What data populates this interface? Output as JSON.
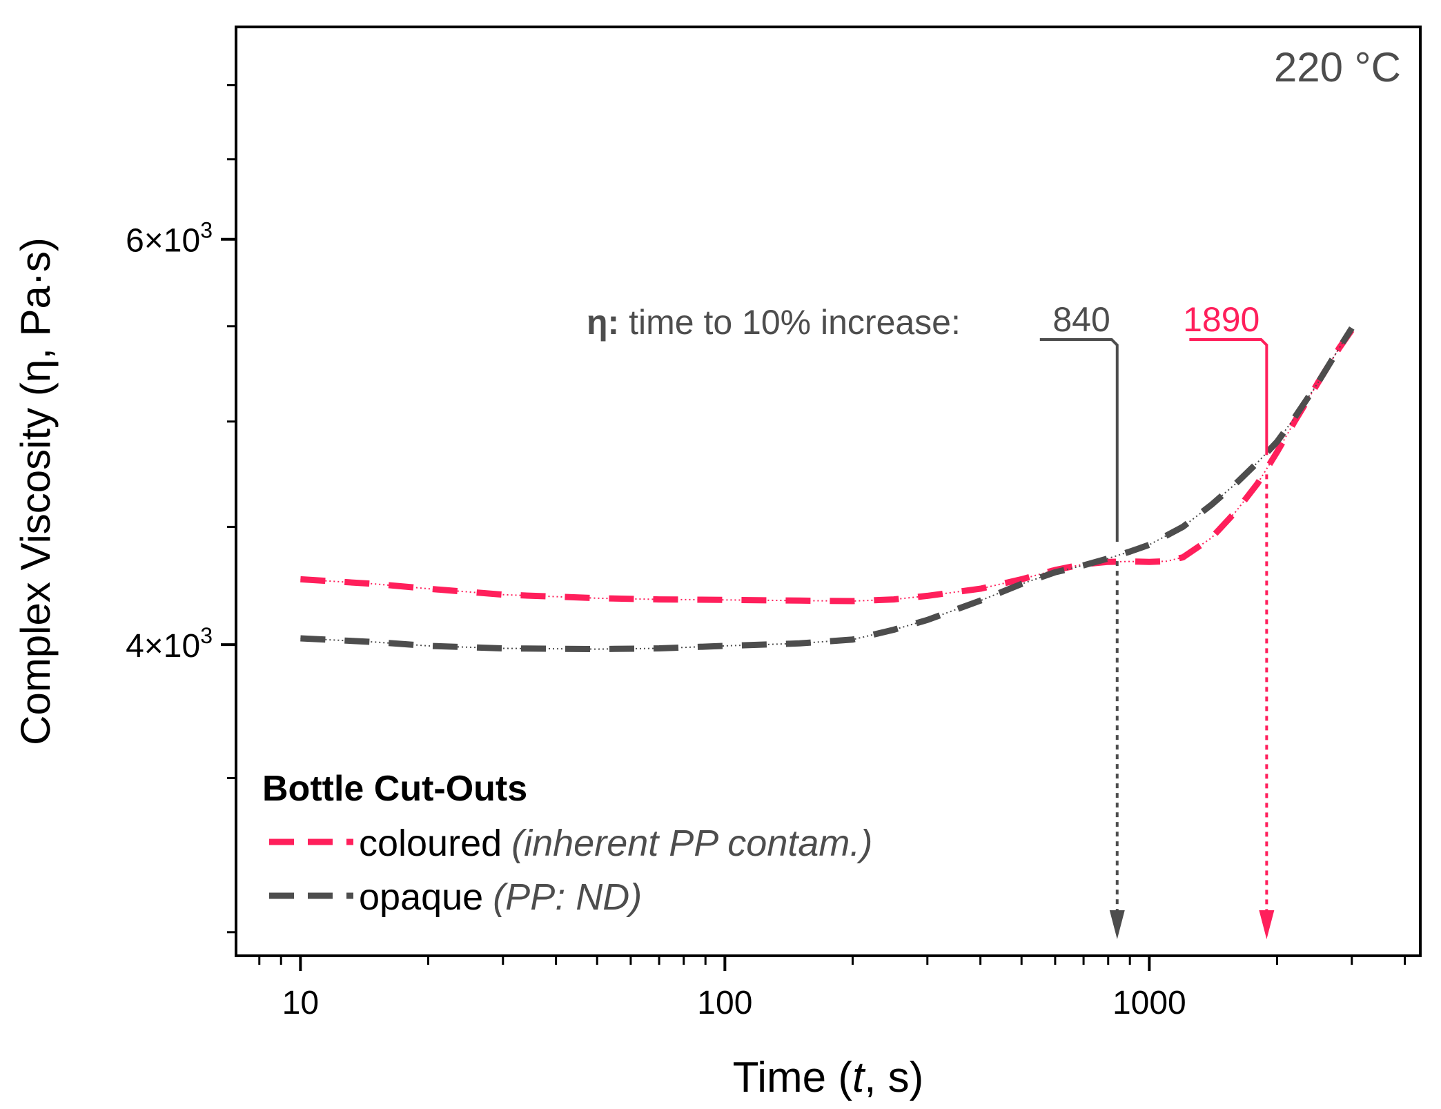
{
  "chart_data": {
    "type": "line",
    "x_scale": "log",
    "y_scale": "log",
    "xlim": [
      7.05,
      4350
    ],
    "ylim": [
      2930,
      7420
    ],
    "xlabel": {
      "prefix": "Time (",
      "italic": "t",
      "suffix": ", s)"
    },
    "ylabel": "Complex Viscosity (η, Pa·s)",
    "x_ticks": [
      {
        "value": 10,
        "label": "10"
      },
      {
        "value": 100,
        "label": "100"
      },
      {
        "value": 1000,
        "label": "1000"
      }
    ],
    "y_ticks": [
      {
        "value": 4000,
        "mantissa": "4×10",
        "exp": "3"
      },
      {
        "value": 6000,
        "mantissa": "6×10",
        "exp": "3"
      }
    ],
    "y_minor_ticks": [
      3000,
      3500,
      4500,
      5000,
      5500,
      6500,
      7000
    ],
    "annotation_temperature": "220 °C",
    "annotation_label": {
      "symbol": "η:",
      "text": " time to 10% increase:"
    },
    "series": [
      {
        "name": "coloured",
        "legend_note": "(inherent PP contam.)",
        "color": "#ff1f5b",
        "x": [
          10,
          15,
          20,
          30,
          50,
          70,
          100,
          150,
          200,
          250,
          300,
          400,
          500,
          600,
          700,
          800,
          900,
          1000,
          1100,
          1200,
          1400,
          1600,
          1800,
          2000,
          2200,
          2500,
          2800,
          3000
        ],
        "values": [
          4270,
          4250,
          4230,
          4205,
          4190,
          4185,
          4183,
          4180,
          4178,
          4185,
          4200,
          4230,
          4270,
          4310,
          4335,
          4345,
          4347,
          4345,
          4348,
          4365,
          4450,
          4570,
          4700,
          4850,
          5000,
          5200,
          5380,
          5480
        ],
        "threshold_time": 1890,
        "threshold_label": "1890"
      },
      {
        "name": "opaque",
        "legend_note": "(PP: ND)",
        "color": "#4d4d4d",
        "x": [
          10,
          15,
          20,
          30,
          50,
          70,
          100,
          150,
          200,
          250,
          300,
          400,
          500,
          600,
          700,
          800,
          900,
          1000,
          1200,
          1400,
          1600,
          1800,
          2000,
          2200,
          2500,
          2800,
          3000
        ],
        "values": [
          4025,
          4010,
          3995,
          3985,
          3982,
          3985,
          3995,
          4005,
          4020,
          4060,
          4100,
          4180,
          4250,
          4300,
          4330,
          4360,
          4390,
          4420,
          4500,
          4600,
          4700,
          4800,
          4900,
          5020,
          5200,
          5380,
          5490
        ],
        "threshold_time": 840,
        "threshold_label": "840"
      }
    ],
    "legend": {
      "title": "Bottle Cut-Outs",
      "position": "bottom-left"
    },
    "grid": false
  }
}
